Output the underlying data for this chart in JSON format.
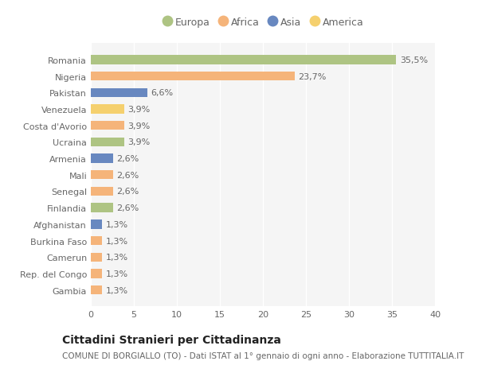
{
  "countries": [
    "Romania",
    "Nigeria",
    "Pakistan",
    "Venezuela",
    "Costa d'Avorio",
    "Ucraina",
    "Armenia",
    "Mali",
    "Senegal",
    "Finlandia",
    "Afghanistan",
    "Burkina Faso",
    "Camerun",
    "Rep. del Congo",
    "Gambia"
  ],
  "values": [
    35.5,
    23.7,
    6.6,
    3.9,
    3.9,
    3.9,
    2.6,
    2.6,
    2.6,
    2.6,
    1.3,
    1.3,
    1.3,
    1.3,
    1.3
  ],
  "labels": [
    "35,5%",
    "23,7%",
    "6,6%",
    "3,9%",
    "3,9%",
    "3,9%",
    "2,6%",
    "2,6%",
    "2,6%",
    "2,6%",
    "1,3%",
    "1,3%",
    "1,3%",
    "1,3%",
    "1,3%"
  ],
  "continents": [
    "Europa",
    "Africa",
    "Asia",
    "America",
    "Africa",
    "Europa",
    "Asia",
    "Africa",
    "Africa",
    "Europa",
    "Asia",
    "Africa",
    "Africa",
    "Africa",
    "Africa"
  ],
  "continent_colors": {
    "Europa": "#aec483",
    "Africa": "#f5b47a",
    "Asia": "#6888c0",
    "America": "#f5d06e"
  },
  "legend_order": [
    "Europa",
    "Africa",
    "Asia",
    "America"
  ],
  "title": "Cittadini Stranieri per Cittadinanza",
  "subtitle": "COMUNE DI BORGIALLO (TO) - Dati ISTAT al 1° gennaio di ogni anno - Elaborazione TUTTITALIA.IT",
  "xlim": [
    0,
    40
  ],
  "xticks": [
    0,
    5,
    10,
    15,
    20,
    25,
    30,
    35,
    40
  ],
  "background_color": "#ffffff",
  "plot_bg_color": "#f5f5f5",
  "grid_color": "#ffffff",
  "bar_height": 0.55,
  "title_fontsize": 10,
  "subtitle_fontsize": 7.5,
  "label_fontsize": 8,
  "tick_fontsize": 8,
  "legend_fontsize": 9
}
